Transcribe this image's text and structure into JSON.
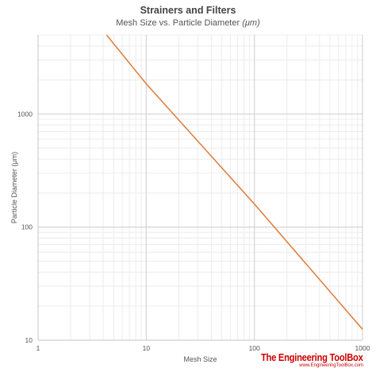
{
  "chart_data": {
    "type": "line",
    "title": "Strainers and Filters",
    "subtitle": "Mesh Size vs. Particle Diameter",
    "subtitle_unit": "(μm)",
    "xlabel": "Mesh Size",
    "ylabel": "Particle Diameter (μm)",
    "xscale": "log",
    "yscale": "log",
    "xlim": [
      1,
      1000
    ],
    "ylim": [
      10,
      5000
    ],
    "xticks": [
      1,
      10,
      100,
      1000
    ],
    "xtick_labels": [
      "1",
      "10",
      "100",
      "1000"
    ],
    "yticks": [
      10,
      100,
      1000
    ],
    "ytick_labels": [
      "10",
      "100",
      "1000"
    ],
    "grid": true,
    "legend": "none",
    "series": [
      {
        "color": "#e07b39",
        "x": [
          4.3,
          10,
          100,
          1000
        ],
        "y": [
          5000,
          1850,
          160,
          12.5
        ]
      }
    ]
  },
  "watermark": {
    "brand": "The Engineering ToolBox",
    "site": "www.EngineeringToolBox.com"
  }
}
